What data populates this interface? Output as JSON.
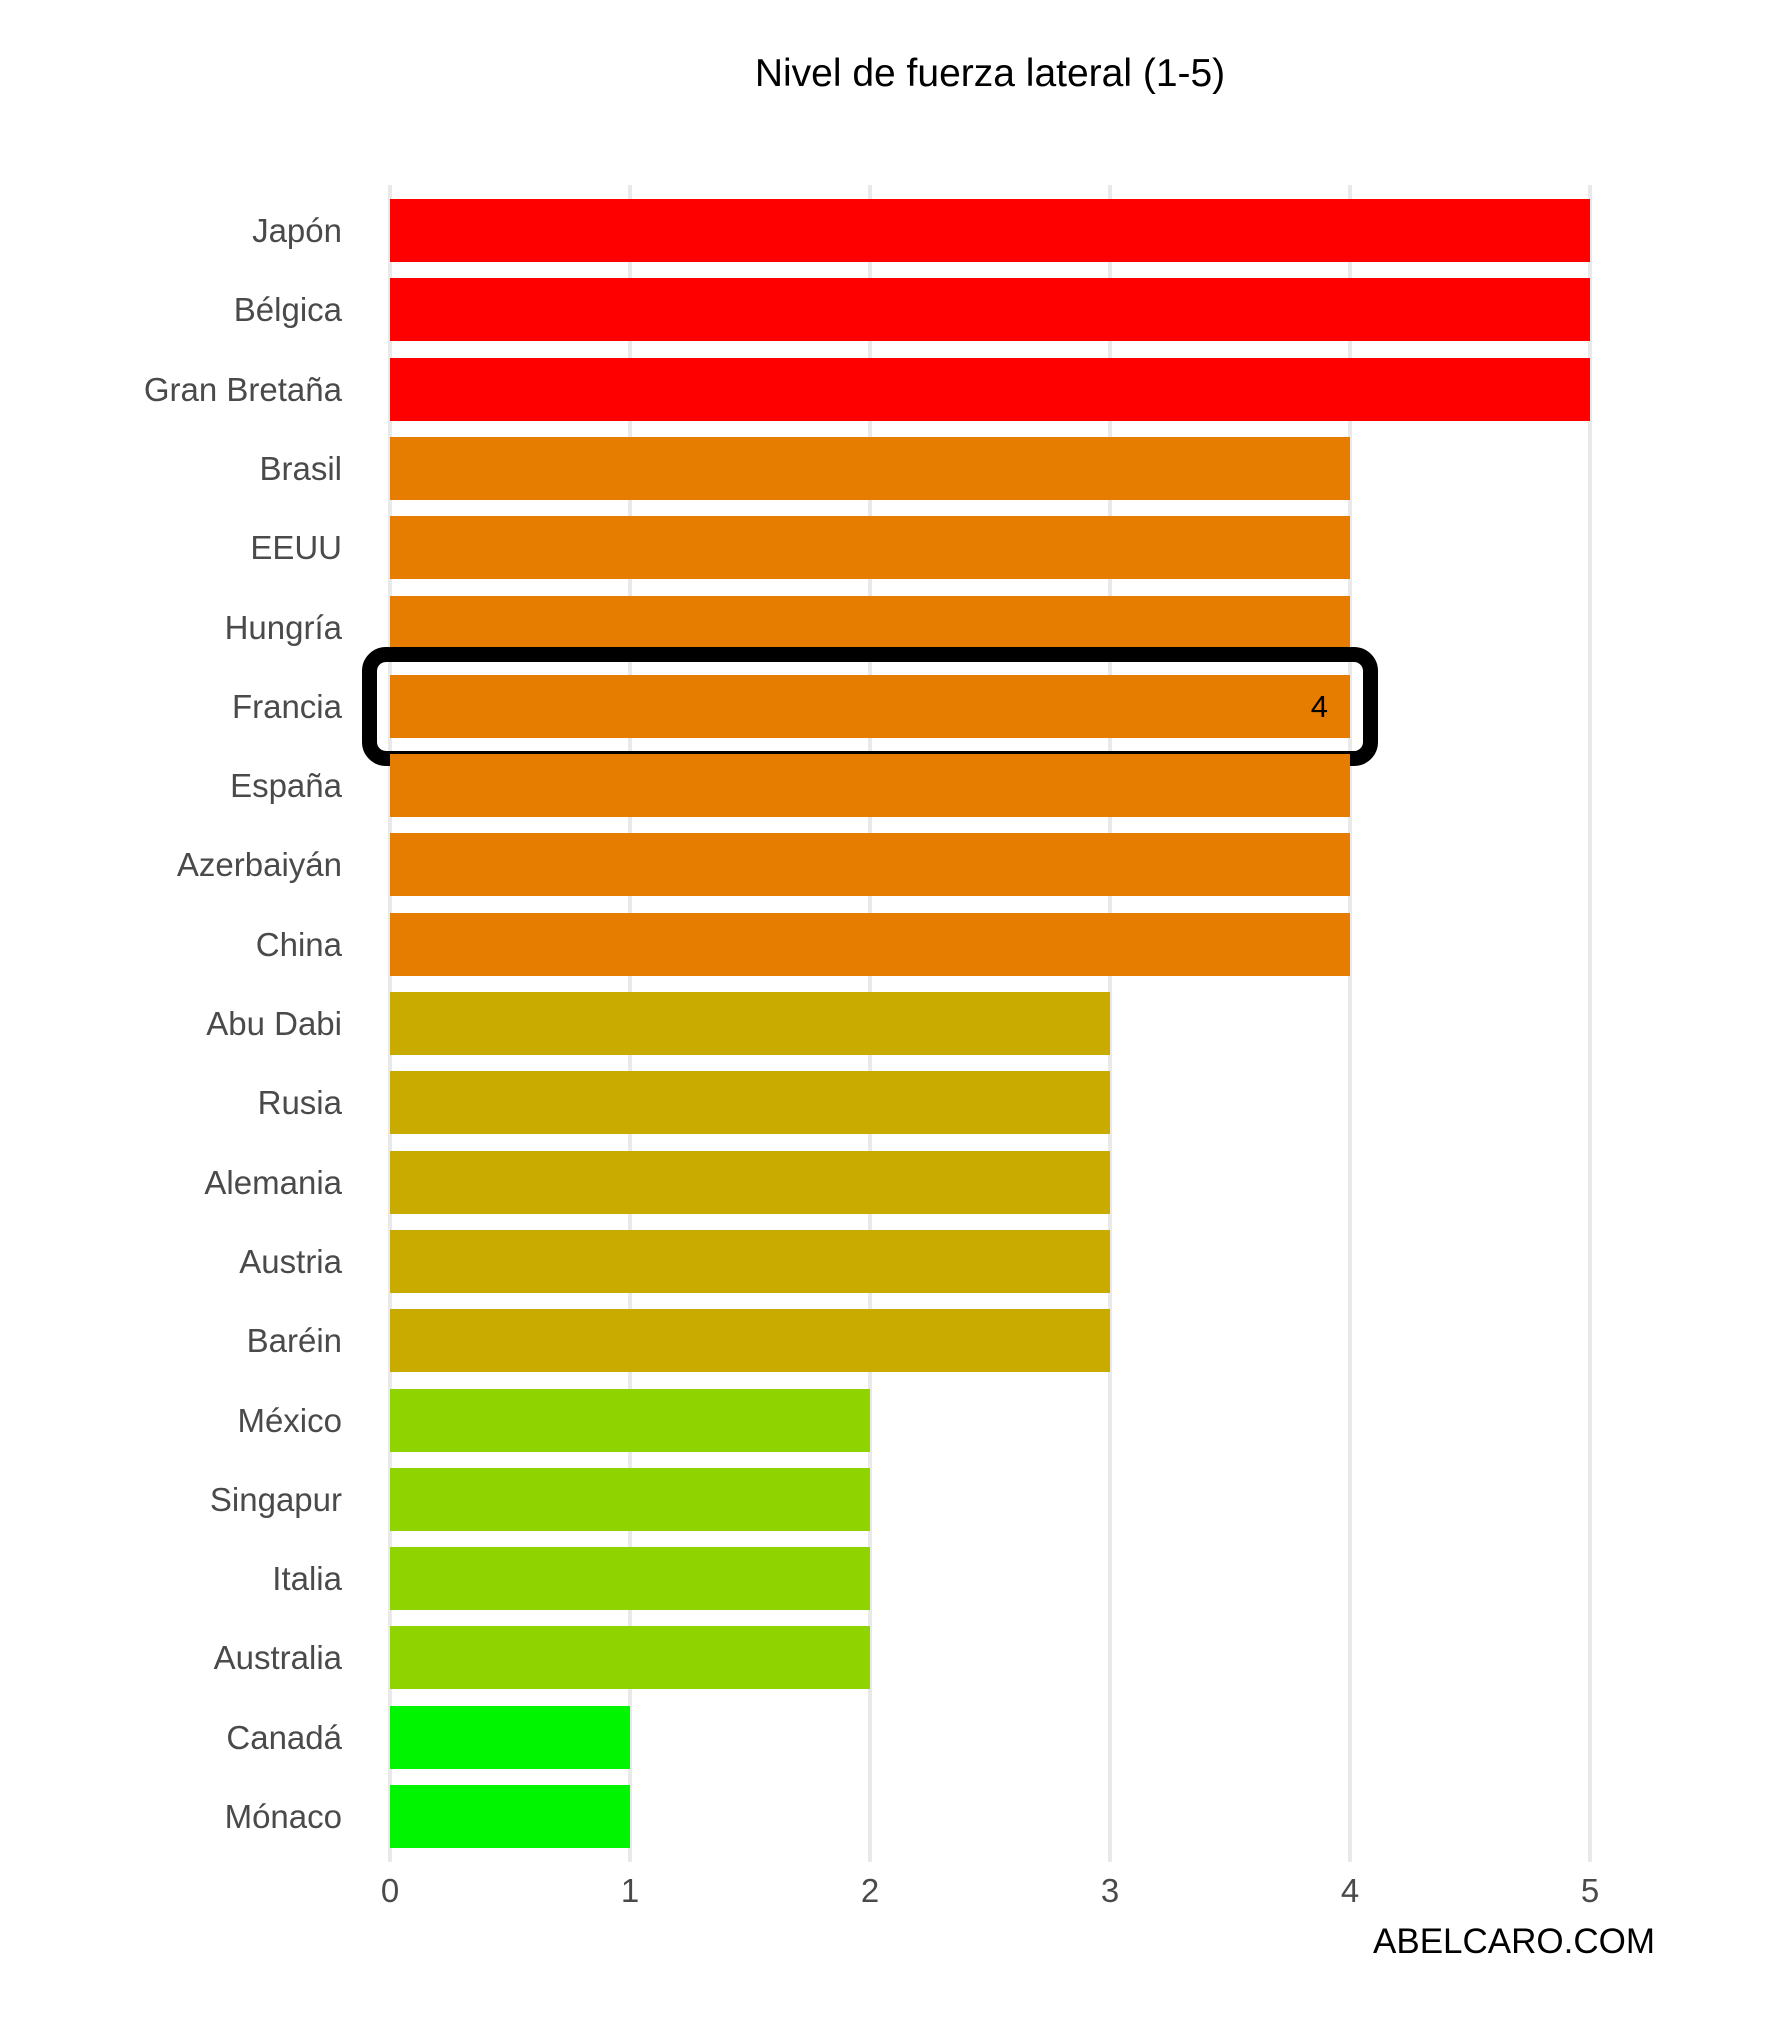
{
  "page": {
    "background": "#ffffff"
  },
  "footer": {
    "brand": "ABELCARO.COM"
  },
  "chart_data": {
    "type": "bar",
    "orientation": "horizontal",
    "title": "Nivel de fuerza lateral (1-5)",
    "categories": [
      "Japón",
      "Bélgica",
      "Gran Bretaña",
      "Brasil",
      "EEUU",
      "Hungría",
      "Francia",
      "España",
      "Azerbaiyán",
      "China",
      "Abu Dabi",
      "Rusia",
      "Alemania",
      "Austria",
      "Baréin",
      "México",
      "Singapur",
      "Italia",
      "Australia",
      "Canadá",
      "Mónaco"
    ],
    "values": [
      5,
      5,
      5,
      4,
      4,
      4,
      4,
      4,
      4,
      4,
      3,
      3,
      3,
      3,
      3,
      2,
      2,
      2,
      2,
      1,
      1
    ],
    "bar_colors": [
      "#ff0000",
      "#ff0000",
      "#ff0000",
      "#e67d00",
      "#e67d00",
      "#e67d00",
      "#e67d00",
      "#e67d00",
      "#e67d00",
      "#e67d00",
      "#c9ab00",
      "#c9ab00",
      "#c9ab00",
      "#c9ab00",
      "#c9ab00",
      "#8fd400",
      "#8fd400",
      "#8fd400",
      "#8fd400",
      "#00f500",
      "#00f500"
    ],
    "value_color_scale": {
      "5": "#ff0000",
      "4": "#e67d00",
      "3": "#c9ab00",
      "2": "#8fd400",
      "1": "#00f500"
    },
    "highlight": {
      "category": "Francia",
      "value_label": "4",
      "border_color": "#000000"
    },
    "x_ticks": [
      "0",
      "1",
      "2",
      "3",
      "4",
      "5"
    ],
    "xlim": [
      0,
      5
    ],
    "grid": "vertical-major-only",
    "legend": "none",
    "colors": {
      "grid_line": "#e9e9e9",
      "category_label": "#4a4a4a",
      "tick_label": "#4a4a4a",
      "title": "#000000"
    }
  }
}
